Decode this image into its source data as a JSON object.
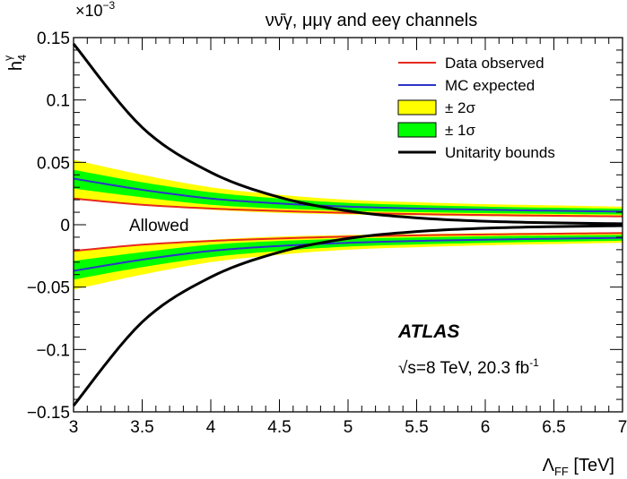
{
  "chart_data": {
    "type": "line",
    "title": "νν̄γ, μμγ and eeγ channels",
    "xlabel": "Λ_FF [TeV]",
    "xlabel_main": "Λ",
    "xlabel_sub": "FF",
    "xlabel_unit": " [TeV]",
    "ylabel": "h_4^γ",
    "ylabel_main": "h",
    "ylabel_sub": "4",
    "ylabel_sup": "γ",
    "y_multiplier": "×10",
    "y_multiplier_exp": "−3",
    "xlim": [
      3,
      7
    ],
    "ylim": [
      -0.15,
      0.15
    ],
    "x_ticks": [
      "3",
      "3.5",
      "4",
      "4.5",
      "5",
      "5.5",
      "6",
      "6.5",
      "7"
    ],
    "y_ticks": [
      "−0.15",
      "−0.1",
      "−0.05",
      "0",
      "0.05",
      "0.1",
      "0.15"
    ],
    "y_tick_values": [
      -0.15,
      -0.1,
      -0.05,
      0,
      0.05,
      0.1,
      0.15
    ],
    "grid": false,
    "legend_position": "top-right",
    "legend": [
      {
        "label": "Data observed",
        "kind": "line",
        "color": "#e8281e"
      },
      {
        "label": "MC expected",
        "kind": "line",
        "color": "#2b34c8"
      },
      {
        "label": "± 2σ",
        "kind": "box",
        "color": "#ffff00"
      },
      {
        "label": "± 1σ",
        "kind": "box",
        "color": "#00ff00"
      },
      {
        "label": "Unitarity bounds",
        "kind": "thickline",
        "color": "#000000"
      }
    ],
    "annotations": {
      "allowed": "Allowed",
      "experiment": "ATLAS",
      "energy": "√s=8 TeV, 20.3 fb",
      "energy_exp": "-1"
    },
    "x": [
      3.0,
      3.5,
      4.0,
      4.5,
      5.0,
      5.5,
      6.0,
      6.5,
      7.0
    ],
    "series": [
      {
        "name": "Data observed",
        "color": "#e8281e",
        "upper": [
          0.021,
          0.016,
          0.013,
          0.011,
          0.0095,
          0.0085,
          0.0078,
          0.0072,
          0.0067
        ],
        "lower": [
          -0.021,
          -0.016,
          -0.013,
          -0.011,
          -0.0095,
          -0.0085,
          -0.0078,
          -0.0072,
          -0.0067
        ]
      },
      {
        "name": "MC expected",
        "color": "#2b34c8",
        "upper": [
          0.037,
          0.028,
          0.021,
          0.017,
          0.0145,
          0.013,
          0.012,
          0.0112,
          0.0105
        ],
        "lower": [
          -0.037,
          -0.028,
          -0.021,
          -0.017,
          -0.0145,
          -0.013,
          -0.012,
          -0.0112,
          -0.0105
        ]
      },
      {
        "name": "± 2σ",
        "color": "#ffff00",
        "band_upper": [
          0.052,
          0.04,
          0.03,
          0.024,
          0.02,
          0.018,
          0.0165,
          0.0155,
          0.0145
        ],
        "band_lower": [
          0.021,
          0.016,
          0.012,
          0.0095,
          0.0083,
          0.0075,
          0.0068,
          0.0064,
          0.006
        ]
      },
      {
        "name": "± 1σ",
        "color": "#00ff00",
        "band_upper": [
          0.044,
          0.034,
          0.026,
          0.021,
          0.0175,
          0.0158,
          0.0145,
          0.0136,
          0.0128
        ],
        "band_lower": [
          0.029,
          0.022,
          0.016,
          0.013,
          0.0112,
          0.0101,
          0.0093,
          0.0087,
          0.0082
        ]
      },
      {
        "name": "Unitarity bounds",
        "color": "#000000",
        "upper": [
          0.145,
          0.078,
          0.042,
          0.022,
          0.011,
          0.0055,
          0.0028,
          0.0015,
          0.0008
        ],
        "lower": [
          -0.145,
          -0.078,
          -0.042,
          -0.022,
          -0.011,
          -0.0055,
          -0.0028,
          -0.0015,
          -0.0008
        ]
      }
    ]
  }
}
